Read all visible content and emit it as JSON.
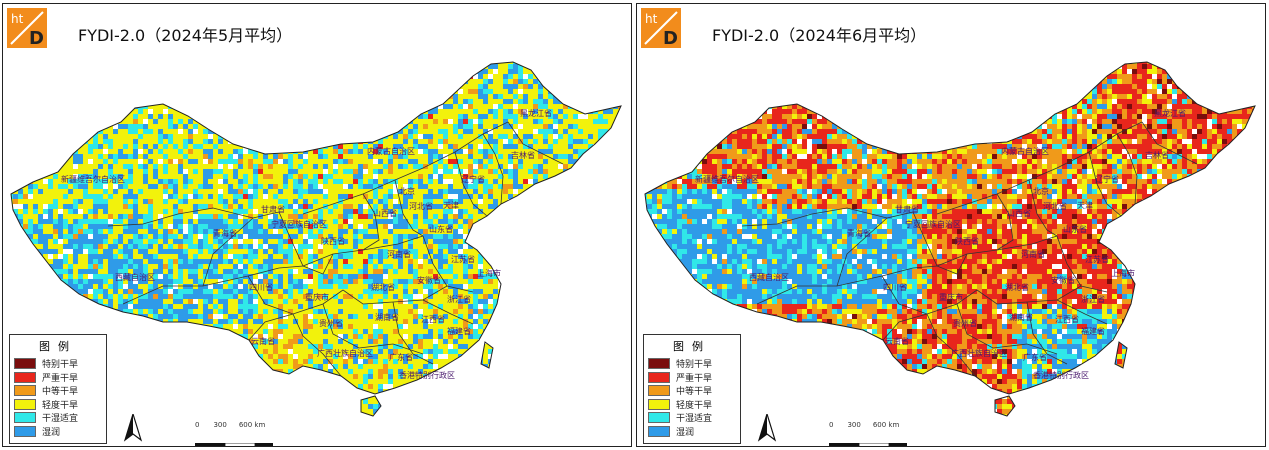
{
  "panels": [
    {
      "title": "FYDI-2.0（2024年5月平均）",
      "scheme": "may"
    },
    {
      "title": "FYDI-2.0（2024年6月平均）",
      "scheme": "june"
    }
  ],
  "logo": {
    "top": "ht",
    "bottom": "D",
    "color": "#f28c1c"
  },
  "legend": {
    "title": "图例",
    "items": [
      {
        "label": "特别干旱",
        "color": "#7a0d0d"
      },
      {
        "label": "严重干旱",
        "color": "#e8261c"
      },
      {
        "label": "中等干旱",
        "color": "#f09a1a"
      },
      {
        "label": "轻度干旱",
        "color": "#f2f20c"
      },
      {
        "label": "干湿适宜",
        "color": "#30e8e8"
      },
      {
        "label": "湿润",
        "color": "#2f9be8"
      }
    ]
  },
  "scale": {
    "ticks": [
      "0",
      "300",
      "600 km"
    ]
  },
  "provinces": [
    "黑龙江省",
    "吉林省",
    "辽宁省",
    "内蒙古自治区",
    "新疆维吾尔自治区",
    "甘肃省",
    "宁夏回族自治区",
    "山西省",
    "河北省",
    "北京",
    "天津",
    "山东省",
    "青海省",
    "陕西省",
    "河南省",
    "西藏自治区",
    "四川省",
    "重庆市",
    "湖北省",
    "安徽省",
    "江苏省",
    "上海市",
    "浙江省",
    "贵州省",
    "湖南省",
    "江西省",
    "福建省",
    "云南省",
    "广西壮族自治区",
    "广东省",
    "香港特别行政区"
  ]
}
